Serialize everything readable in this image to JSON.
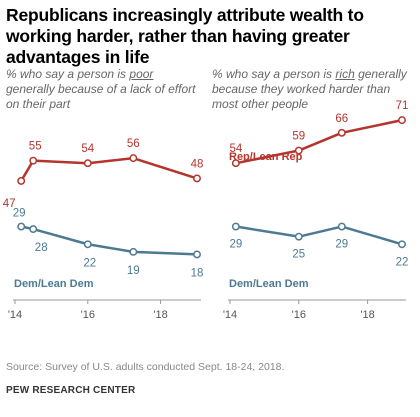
{
  "title": "Republicans increasingly attribute wealth to working harder, rather than having greater advantages in life",
  "colors": {
    "rep": "#b4352d",
    "dem": "#4d7a93",
    "axis": "#999999",
    "tick_text": "#555555"
  },
  "source": "Source: Survey of U.S. adults conducted Sept. 18-24, 2018.",
  "org": "PEW RESEARCH CENTER",
  "chart_data": [
    {
      "type": "line",
      "subtitle": {
        "pre": "% who say a person is ",
        "underlined": "poor",
        "post": " generally because of a lack of effort on their part"
      },
      "xticks": [
        2014,
        2016,
        2018
      ],
      "xtick_labels": [
        "'14",
        "'16",
        "'18"
      ],
      "xlim": [
        2014,
        2019
      ],
      "ylim": [
        0,
        75
      ],
      "series": [
        {
          "name": "Rep/Lean Rep",
          "color": "#b4352d",
          "x": [
            2014.17,
            2014.5,
            2016,
            2017.25,
            2019
          ],
          "values": [
            47,
            55,
            54,
            56,
            48
          ]
        },
        {
          "name": "Dem/Lean Dem",
          "color": "#4d7a93",
          "x": [
            2014.17,
            2014.5,
            2016,
            2017.25,
            2019
          ],
          "values": [
            29,
            28,
            22,
            19,
            18
          ]
        }
      ]
    },
    {
      "type": "line",
      "subtitle": {
        "pre": "% who say a person is ",
        "underlined": "rich",
        "post": " generally because they worked harder than most other people"
      },
      "xticks": [
        2014,
        2016,
        2018
      ],
      "xtick_labels": [
        "'14",
        "'16",
        "'18"
      ],
      "xlim": [
        2014,
        2019
      ],
      "ylim": [
        0,
        75
      ],
      "series": [
        {
          "name": "Rep/Lean Rep",
          "color": "#b4352d",
          "x": [
            2014.17,
            2016,
            2017.25,
            2019
          ],
          "values": [
            54,
            59,
            66,
            71
          ]
        },
        {
          "name": "Dem/Lean Dem",
          "color": "#4d7a93",
          "x": [
            2014.17,
            2016,
            2017.25,
            2019
          ],
          "values": [
            29,
            25,
            29,
            22
          ]
        }
      ]
    }
  ]
}
